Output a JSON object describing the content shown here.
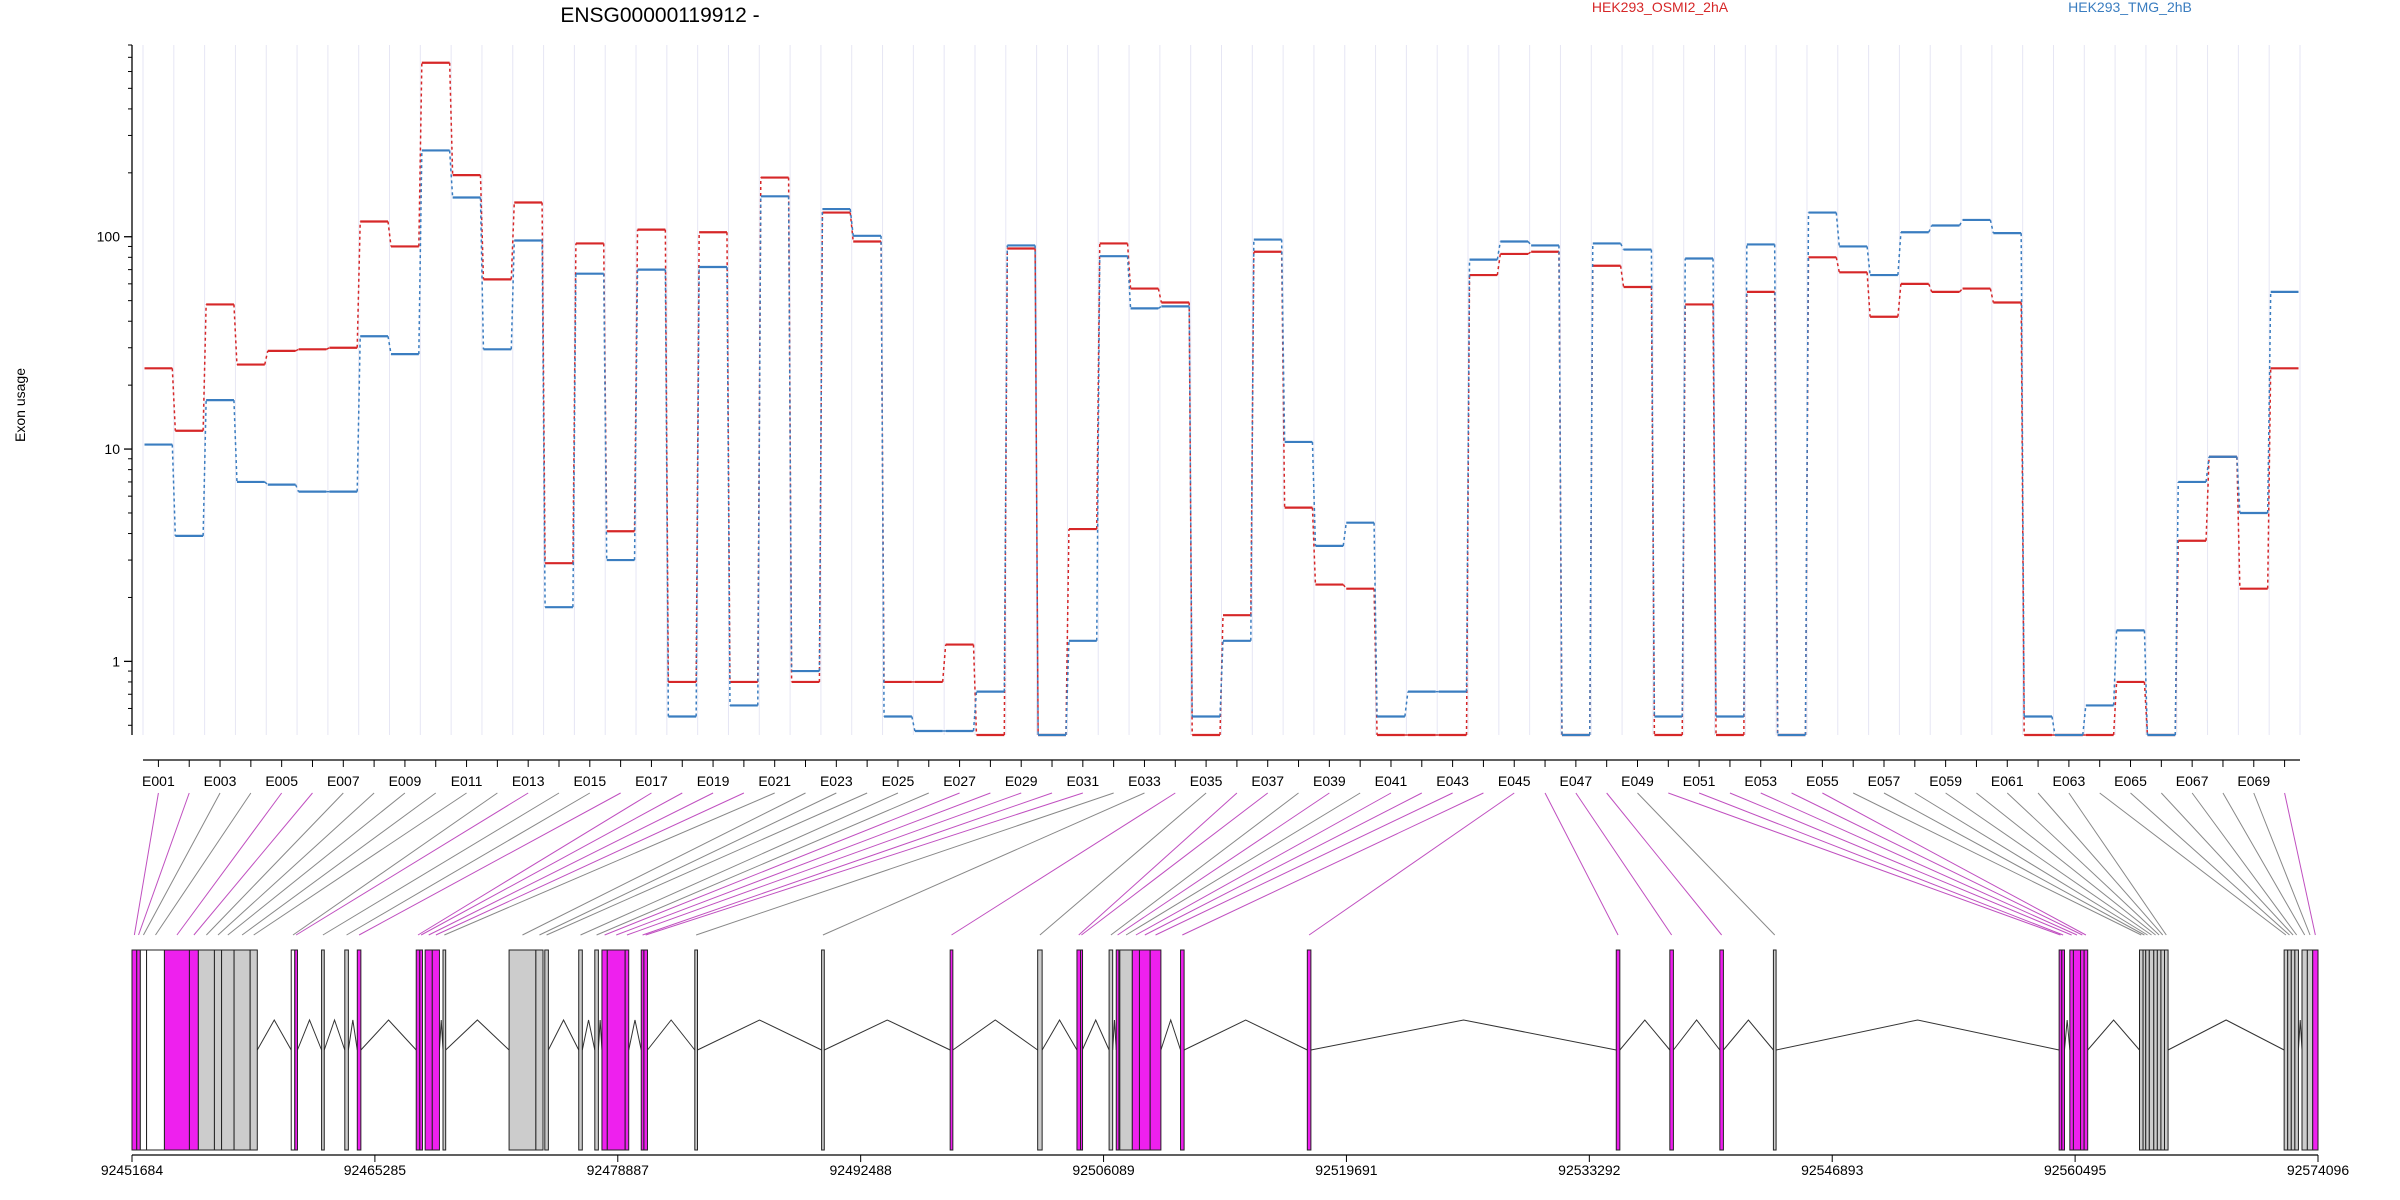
{
  "chart_data": {
    "type": "line",
    "title": "ENSG00000119912 -",
    "ylabel": "Exon usage",
    "yscale": "log",
    "ylim": [
      0.45,
      800
    ],
    "yticks": [
      1,
      10,
      100
    ],
    "ytick_labels": [
      "1",
      "10",
      "100"
    ],
    "grid": "vertical-per-exon",
    "legend_placement": "top-right",
    "exons": [
      "E001",
      "E002",
      "E003",
      "E004",
      "E005",
      "E006",
      "E007",
      "E008",
      "E009",
      "E010",
      "E011",
      "E012",
      "E013",
      "E014",
      "E015",
      "E016",
      "E017",
      "E018",
      "E019",
      "E020",
      "E021",
      "E022",
      "E023",
      "E024",
      "E025",
      "E026",
      "E027",
      "E028",
      "E029",
      "E030",
      "E031",
      "E032",
      "E033",
      "E034",
      "E035",
      "E036",
      "E037",
      "E038",
      "E039",
      "E040",
      "E041",
      "E042",
      "E043",
      "E044",
      "E045",
      "E046",
      "E047",
      "E048",
      "E049",
      "E050",
      "E051",
      "E052",
      "E053",
      "E054",
      "E055",
      "E056",
      "E057",
      "E058",
      "E059",
      "E060",
      "E061",
      "E062",
      "E063",
      "E064",
      "E065",
      "E066",
      "E067",
      "E068",
      "E069",
      "E070"
    ],
    "xtick_labels": [
      "E001",
      "E003",
      "E005",
      "E007",
      "E009",
      "E011",
      "E013",
      "E015",
      "E017",
      "E019",
      "E021",
      "E023",
      "E025",
      "E027",
      "E029",
      "E031",
      "E033",
      "E035",
      "E037",
      "E039",
      "E041",
      "E043",
      "E045",
      "E047",
      "E049",
      "E051",
      "E053",
      "E055",
      "E057",
      "E059",
      "E061",
      "E063",
      "E065",
      "E067",
      "E069"
    ],
    "series": [
      {
        "name": "HEK293_OSMI2_2hA",
        "color": "#d62728",
        "values": [
          24,
          12.2,
          48,
          25,
          29,
          29.5,
          30,
          118,
          90,
          660,
          195,
          63,
          145,
          2.9,
          93,
          4.1,
          108,
          0.8,
          105,
          0.8,
          190,
          0.8,
          130,
          95,
          0.8,
          0.8,
          1.2,
          0.45,
          88,
          0.45,
          4.2,
          93,
          57,
          49,
          0.45,
          1.65,
          85,
          5.3,
          2.3,
          2.2,
          0.45,
          0.45,
          0.45,
          66,
          83,
          85,
          0.45,
          73,
          58,
          0.45,
          48,
          0.45,
          55,
          0.45,
          80,
          68,
          42,
          60,
          55,
          57,
          49,
          0.45,
          0.45,
          0.45,
          0.8,
          0.45,
          3.7,
          9.2,
          2.2,
          24
        ]
      },
      {
        "name": "HEK293_TMG_2hB",
        "color": "#3a7dc0",
        "values": [
          10.5,
          3.9,
          17,
          7,
          6.8,
          6.3,
          6.3,
          34,
          28,
          255,
          153,
          29.5,
          96,
          1.8,
          67,
          3,
          70,
          0.55,
          72,
          0.62,
          155,
          0.9,
          135,
          101,
          0.55,
          0.47,
          0.47,
          0.72,
          91,
          0.45,
          1.25,
          81,
          46,
          47,
          0.55,
          1.25,
          97,
          10.8,
          3.5,
          4.5,
          0.55,
          0.72,
          0.72,
          78,
          95,
          91,
          0.45,
          93,
          87,
          0.55,
          79,
          0.55,
          92,
          0.45,
          130,
          90,
          66,
          105,
          113,
          120,
          104,
          0.55,
          0.45,
          0.62,
          1.4,
          0.45,
          7,
          9.2,
          5,
          55
        ]
      }
    ],
    "genomic_axis": {
      "labels": [
        "92451684",
        "92465285",
        "92478887",
        "92492488",
        "92506089",
        "92519691",
        "92533292",
        "92546893",
        "92560495",
        "92574096"
      ],
      "start": 92451684,
      "end": 92574096
    },
    "gene_model": {
      "highlight_color": "#ee20ee",
      "exon_fill": "#cccccc",
      "exon_fill_alt": "#ffffff",
      "highlighted_exons": [
        "E001",
        "E002",
        "E005",
        "E006",
        "E013",
        "E016",
        "E017",
        "E018",
        "E019",
        "E020",
        "E027",
        "E028",
        "E029",
        "E030",
        "E031",
        "E034",
        "E036",
        "E037",
        "E039",
        "E041",
        "E042",
        "E043",
        "E044",
        "E045",
        "E046",
        "E047",
        "E048",
        "E050",
        "E051",
        "E052",
        "E053",
        "E054",
        "E055",
        "E070"
      ],
      "grey_exons": [
        "E007",
        "E008",
        "E009",
        "E010",
        "E011",
        "E014",
        "E015",
        "E021",
        "E022",
        "E023",
        "E024",
        "E025",
        "E026",
        "E032",
        "E033",
        "E035",
        "E038",
        "E040",
        "E049",
        "E056",
        "E057",
        "E058",
        "E059",
        "E060",
        "E061",
        "E062",
        "E063",
        "E064",
        "E065",
        "E066",
        "E067",
        "E068",
        "E069"
      ]
    }
  }
}
